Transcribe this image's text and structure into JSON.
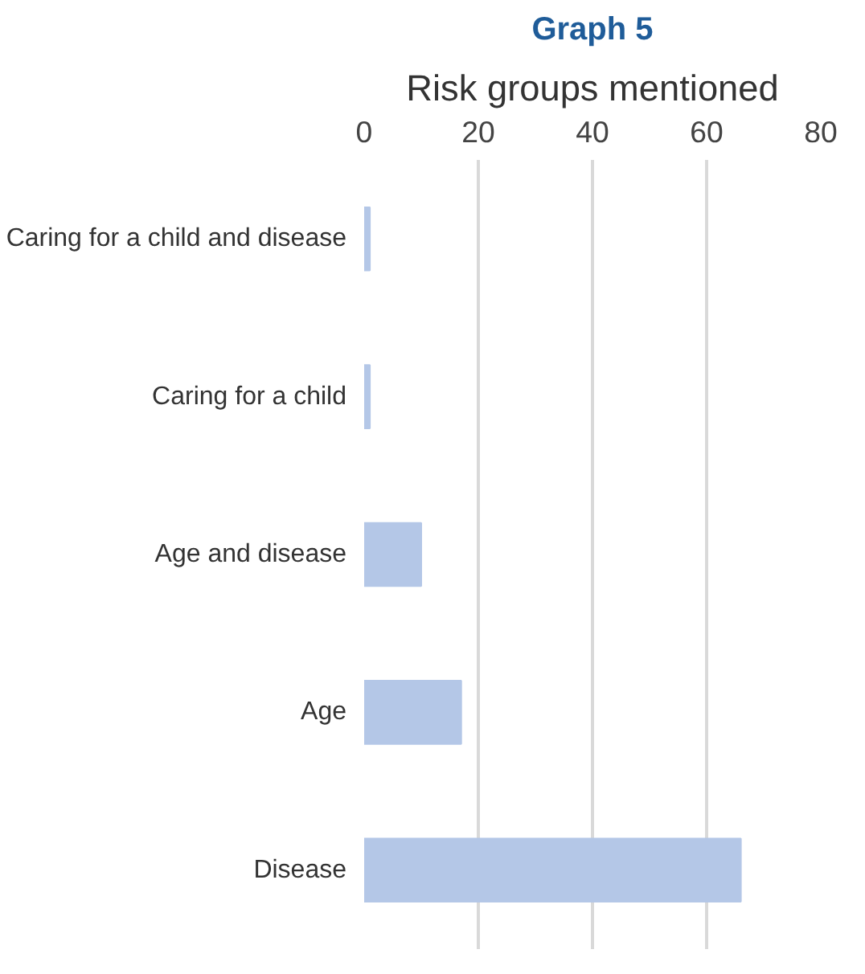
{
  "chart_data": {
    "type": "bar",
    "orientation": "horizontal",
    "title": "Graph 5",
    "subtitle": "Risk groups mentioned",
    "categories": [
      "Caring for a child and disease",
      "Caring for a child",
      "Age and disease",
      "Age",
      "Disease"
    ],
    "values": [
      1,
      1,
      10,
      17,
      66
    ],
    "color": "#b4c7e7",
    "xlim": [
      0,
      80
    ],
    "xticks": [
      0,
      20,
      40,
      60,
      80
    ],
    "grid": "x"
  }
}
